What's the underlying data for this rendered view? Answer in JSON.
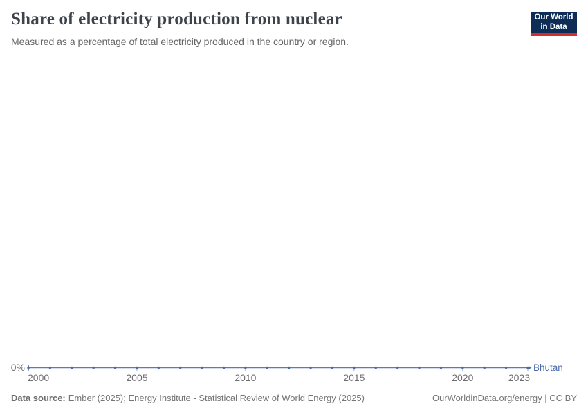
{
  "header": {
    "title": "Share of electricity production from nuclear",
    "subtitle": "Measured as a percentage of total electricity produced in the country or region."
  },
  "logo": {
    "line1": "Our World",
    "line2": "in Data",
    "bg_color": "#0e2d56",
    "bar_color": "#d52a2e"
  },
  "chart_data": {
    "type": "line",
    "title": "Share of electricity production from nuclear",
    "xlabel": "",
    "ylabel": "",
    "unit": "%",
    "x": [
      2000,
      2001,
      2002,
      2003,
      2004,
      2005,
      2006,
      2007,
      2008,
      2009,
      2010,
      2011,
      2012,
      2013,
      2014,
      2015,
      2016,
      2017,
      2018,
      2019,
      2020,
      2021,
      2022,
      2023
    ],
    "series": [
      {
        "name": "Bhutan",
        "color": "#4c6bad",
        "line_color": "#6079b6",
        "values": [
          0,
          0,
          0,
          0,
          0,
          0,
          0,
          0,
          0,
          0,
          0,
          0,
          0,
          0,
          0,
          0,
          0,
          0,
          0,
          0,
          0,
          0,
          0,
          0
        ]
      }
    ],
    "x_ticks": [
      2000,
      2005,
      2010,
      2015,
      2020,
      2023
    ],
    "y_zero_label": "0%",
    "ylim": [
      0,
      0
    ],
    "grid": false,
    "legend_position": "right-of-line-end"
  },
  "footer": {
    "data_source_label": "Data source:",
    "data_source_text": "Ember (2025); Energy Institute - Statistical Review of World Energy (2025)",
    "link_text": "OurWorldinData.org/energy | CC BY"
  }
}
